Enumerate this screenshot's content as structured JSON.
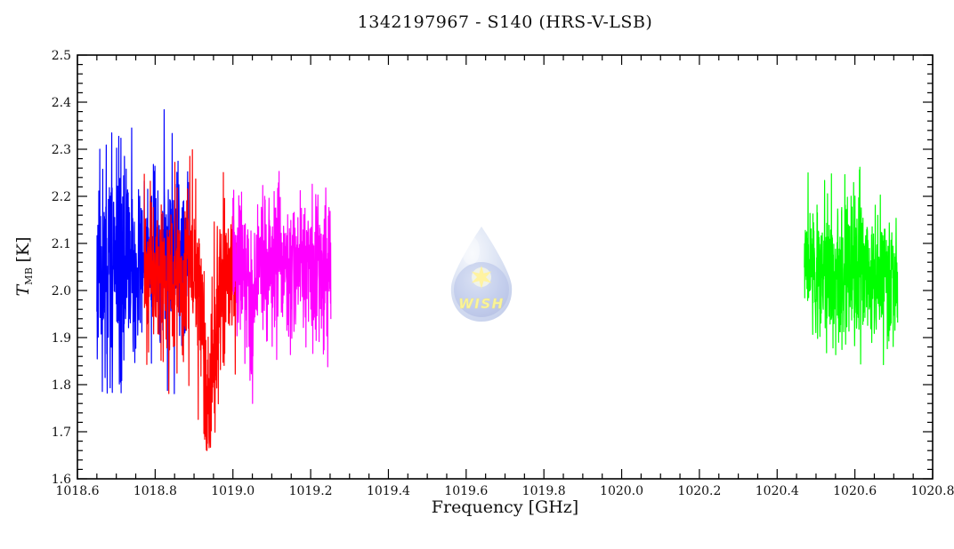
{
  "watermark": {
    "label": "WISH",
    "icon": "water-drop-with-star",
    "drop_color_light": "#dbe4f6",
    "drop_color_mid": "#b9c7ea",
    "drop_color_dark": "#8299d6",
    "star_color": "#ffe94d",
    "text_color": "#f6ea3e"
  },
  "chart_data": {
    "type": "line",
    "title": "1342197967 - S140 (HRS-V-LSB)",
    "xlabel": "Frequency [GHz]",
    "ylabel_main": "T",
    "ylabel_sub": "MB",
    "ylabel_unit": "[K]",
    "xlim": [
      1018.6,
      1020.8
    ],
    "ylim": [
      1.6,
      2.5
    ],
    "x_major_tick": 0.2,
    "x_minor_tick": 0.05,
    "y_major_tick": 0.1,
    "y_minor_tick": 0.02,
    "x_tick_labels": [
      "1018.6",
      "1018.8",
      "1019.0",
      "1019.2",
      "1019.4",
      "1019.6",
      "1019.8",
      "1020.0",
      "1020.2",
      "1020.4",
      "1020.6",
      "1020.8"
    ],
    "y_tick_labels": [
      "1.6",
      "1.7",
      "1.8",
      "1.9",
      "2.0",
      "2.1",
      "2.2",
      "2.3",
      "2.4",
      "2.5"
    ],
    "grid": false,
    "legend": "none",
    "background": "#ffffff",
    "axis_color": "#000000",
    "series": [
      {
        "name": "spectrum-segment-blue",
        "color": "#0000ff",
        "x_start": 1018.65,
        "x_end": 1018.886,
        "n_points": 470,
        "baseline": 2.06,
        "sigma": 0.082,
        "seed": 11,
        "y_min": 1.78,
        "y_max": 2.39,
        "features": [
          {
            "type": "sigma_boost",
            "center": 1018.69,
            "width": 0.022,
            "factor": 0.65
          }
        ]
      },
      {
        "name": "spectrum-segment-red",
        "color": "#ff0000",
        "x_start": 1018.772,
        "x_end": 1019.007,
        "n_points": 470,
        "baseline": 2.03,
        "sigma": 0.079,
        "seed": 7,
        "y_min": 1.66,
        "y_max": 2.31,
        "features": [
          {
            "type": "dip",
            "center": 1018.94,
            "width": 0.013,
            "depth": 0.27
          },
          {
            "type": "sigma_boost",
            "center": 1018.94,
            "width": 0.016,
            "factor": 0.55
          }
        ]
      },
      {
        "name": "spectrum-segment-magenta",
        "color": "#ff00ff",
        "x_start": 1019.0,
        "x_end": 1019.252,
        "n_points": 500,
        "baseline": 2.05,
        "sigma": 0.074,
        "seed": 23,
        "y_min": 1.76,
        "y_max": 2.29,
        "features": [
          {
            "type": "dip",
            "center": 1019.05,
            "width": 0.004,
            "depth": 0.1
          }
        ]
      },
      {
        "name": "spectrum-segment-green",
        "color": "#00ff00",
        "x_start": 1020.47,
        "x_end": 1020.71,
        "n_points": 480,
        "baseline": 2.04,
        "sigma": 0.071,
        "seed": 5,
        "y_min": 1.84,
        "y_max": 2.27,
        "features": []
      }
    ]
  }
}
